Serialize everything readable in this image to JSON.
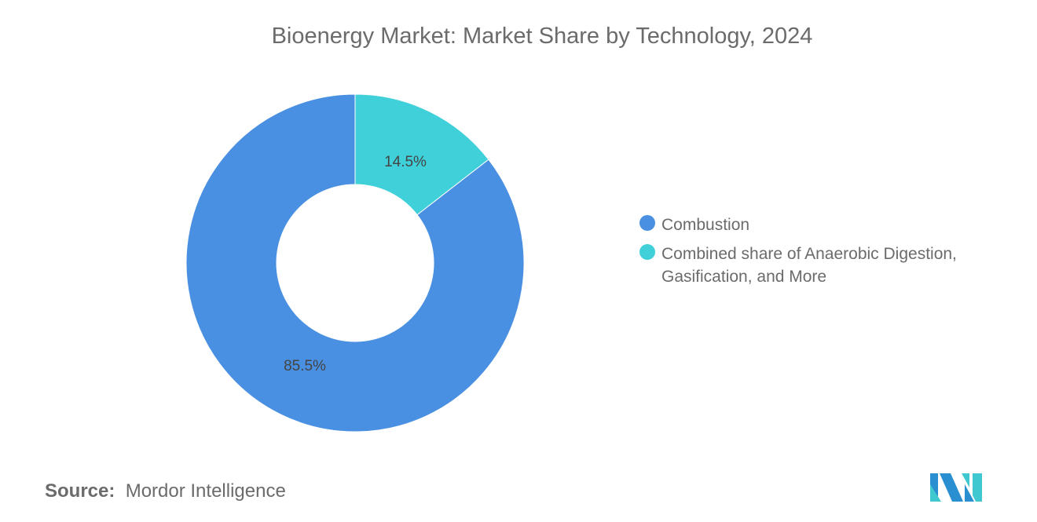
{
  "chart_data": {
    "type": "pie",
    "subtype": "donut",
    "title": "Bioenergy Market: Market Share by Technology, 2024",
    "categories": [
      "Combustion",
      "Combined share of Anaerobic Digestion, Gasification, and More"
    ],
    "values": [
      85.5,
      14.5
    ],
    "data_labels": [
      "85.5%",
      "14.5%"
    ],
    "colors": [
      "#4a90e2",
      "#40d0da"
    ],
    "legend_position": "right"
  },
  "legend": {
    "items": [
      {
        "label": "Combustion",
        "color": "#4a90e2"
      },
      {
        "label": "Combined share of Anaerobic Digestion, Gasification, and More",
        "color": "#40d0da"
      }
    ]
  },
  "source": {
    "label": "Source:",
    "value": "Mordor Intelligence"
  },
  "logo": {
    "text": "Mordor Intelligence"
  }
}
